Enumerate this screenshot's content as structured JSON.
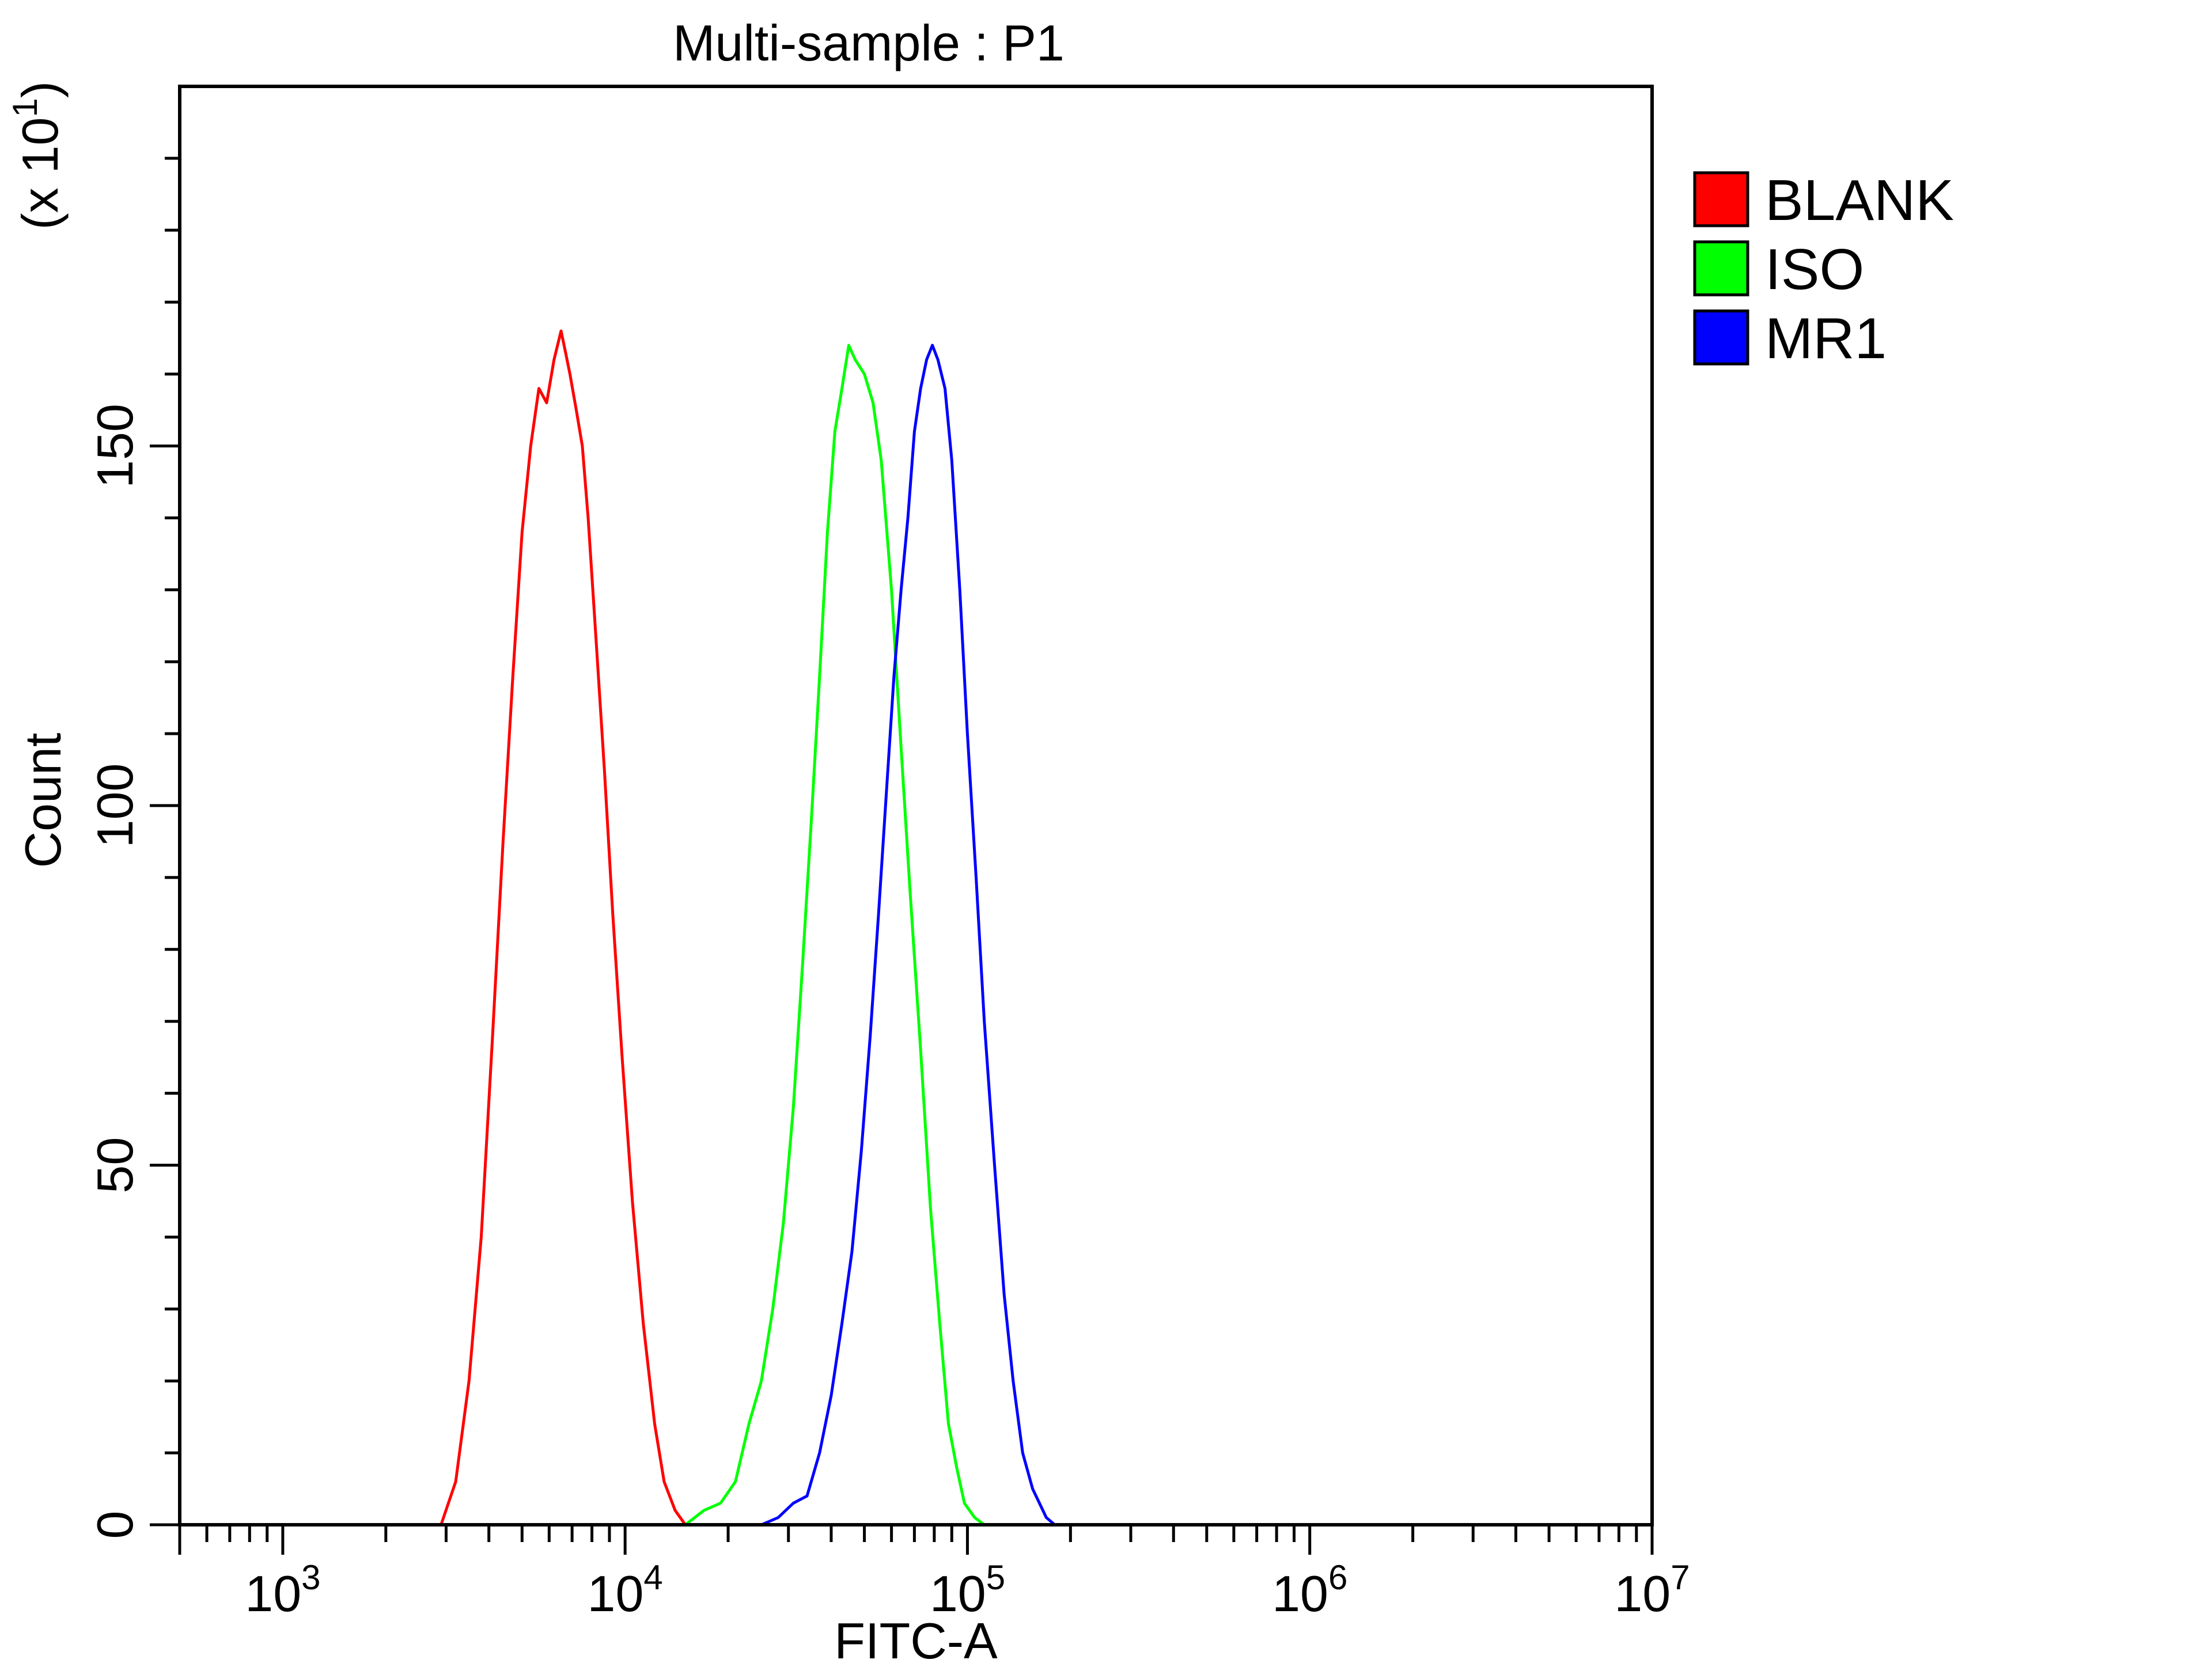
{
  "chart_data": {
    "type": "line",
    "title": "Multi-sample : P1",
    "xlabel": "FITC-A",
    "ylabel": "Count",
    "y_multiplier_label": "(x 10",
    "y_multiplier_exp": "1",
    "y_multiplier_close": ")",
    "x_scale": "log",
    "xlim": [
      500,
      10000000
    ],
    "ylim": [
      0,
      200
    ],
    "x_ticks": [
      {
        "value": 1000,
        "base": "10",
        "exp": "3"
      },
      {
        "value": 10000,
        "base": "10",
        "exp": "4"
      },
      {
        "value": 100000,
        "base": "10",
        "exp": "5"
      },
      {
        "value": 1000000,
        "base": "10",
        "exp": "6"
      },
      {
        "value": 10000000,
        "base": "10",
        "exp": "7"
      }
    ],
    "y_ticks": [
      {
        "value": 0,
        "label": "0"
      },
      {
        "value": 50,
        "label": "50"
      },
      {
        "value": 100,
        "label": "100"
      },
      {
        "value": 150,
        "label": "150"
      }
    ],
    "y_minor_ticks": [
      10,
      20,
      30,
      40,
      60,
      70,
      80,
      90,
      110,
      120,
      130,
      140,
      160,
      170,
      180,
      190
    ],
    "grid": false,
    "legend_position": "right",
    "series": [
      {
        "name": "BLANK",
        "color": "#ff0000",
        "x": [
          2900,
          3200,
          3500,
          3800,
          4100,
          4400,
          4700,
          5000,
          5300,
          5600,
          5900,
          6200,
          6500,
          6700,
          6900,
          7200,
          7500,
          7800,
          8200,
          8700,
          9200,
          9800,
          10500,
          11300,
          12200,
          13000,
          14000,
          15000
        ],
        "y": [
          0,
          6,
          20,
          40,
          68,
          95,
          118,
          138,
          150,
          158,
          156,
          162,
          166,
          163,
          160,
          155,
          150,
          140,
          124,
          105,
          85,
          65,
          45,
          28,
          14,
          6,
          2,
          0
        ]
      },
      {
        "name": "ISO",
        "color": "#00ff00",
        "x": [
          15000,
          17000,
          19000,
          21000,
          23000,
          25000,
          27000,
          29000,
          31000,
          33000,
          35000,
          37000,
          39000,
          41000,
          43000,
          45000,
          47000,
          50000,
          53000,
          56000,
          60000,
          64000,
          68000,
          73000,
          78000,
          83000,
          88000,
          93000,
          98000,
          105000,
          112000
        ],
        "y": [
          0,
          2,
          3,
          6,
          14,
          20,
          30,
          42,
          58,
          78,
          98,
          118,
          138,
          152,
          158,
          164,
          162,
          160,
          156,
          148,
          130,
          108,
          88,
          66,
          44,
          28,
          14,
          8,
          3,
          1,
          0
        ]
      },
      {
        "name": "MR1",
        "color": "#0000ff",
        "x": [
          25000,
          28000,
          31000,
          34000,
          37000,
          40000,
          43000,
          46000,
          49000,
          52000,
          55000,
          58000,
          61000,
          64000,
          67000,
          70000,
          73000,
          76000,
          79000,
          82000,
          86000,
          90000,
          95000,
          100000,
          106000,
          112000,
          120000,
          128000,
          136000,
          145000,
          155000,
          170000,
          180000
        ],
        "y": [
          0,
          1,
          3,
          4,
          10,
          18,
          28,
          38,
          52,
          68,
          85,
          102,
          118,
          130,
          140,
          152,
          158,
          162,
          164,
          162,
          158,
          148,
          130,
          110,
          90,
          70,
          50,
          32,
          20,
          10,
          5,
          1,
          0
        ]
      }
    ]
  }
}
